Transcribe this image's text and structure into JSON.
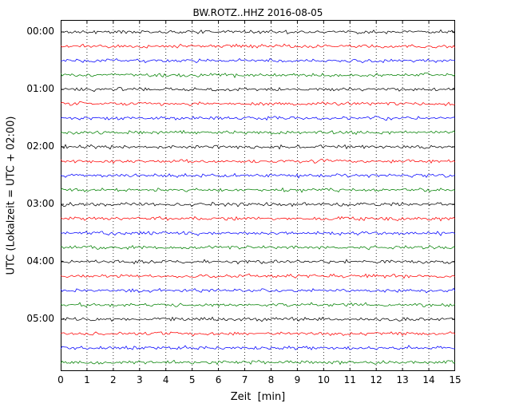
{
  "chart_data": {
    "type": "line",
    "subtype": "helicorder-dayplot",
    "title": "BW.ROTZ..HHZ 2016-08-05",
    "xlabel": "Zeit  [min]",
    "ylabel": "UTC (Lokalzeit = UTC + 02:00)",
    "xlim": [
      0,
      15
    ],
    "x_ticks": [
      "0",
      "1",
      "2",
      "3",
      "4",
      "5",
      "6",
      "7",
      "8",
      "9",
      "10",
      "11",
      "12",
      "13",
      "14",
      "15"
    ],
    "y_tick_labels": [
      "00:00",
      "01:00",
      "02:00",
      "03:00",
      "04:00",
      "05:00"
    ],
    "time_range": [
      "00:00",
      "06:00"
    ],
    "minutes_per_line": 15,
    "grid": true,
    "grid_style": "dotted-vertical",
    "trace_color_cycle": [
      "#000000",
      "#ff0000",
      "#0000ff",
      "#008000"
    ],
    "trace_description": "flat low-amplitude seismic background noise on every line",
    "traces": [
      {
        "start": "00:00",
        "color": "#000000"
      },
      {
        "start": "00:15",
        "color": "#ff0000"
      },
      {
        "start": "00:30",
        "color": "#0000ff"
      },
      {
        "start": "00:45",
        "color": "#008000"
      },
      {
        "start": "01:00",
        "color": "#000000"
      },
      {
        "start": "01:15",
        "color": "#ff0000"
      },
      {
        "start": "01:30",
        "color": "#0000ff"
      },
      {
        "start": "01:45",
        "color": "#008000"
      },
      {
        "start": "02:00",
        "color": "#000000"
      },
      {
        "start": "02:15",
        "color": "#ff0000"
      },
      {
        "start": "02:30",
        "color": "#0000ff"
      },
      {
        "start": "02:45",
        "color": "#008000"
      },
      {
        "start": "03:00",
        "color": "#000000"
      },
      {
        "start": "03:15",
        "color": "#ff0000"
      },
      {
        "start": "03:30",
        "color": "#0000ff"
      },
      {
        "start": "03:45",
        "color": "#008000"
      },
      {
        "start": "04:00",
        "color": "#000000"
      },
      {
        "start": "04:15",
        "color": "#ff0000"
      },
      {
        "start": "04:30",
        "color": "#0000ff"
      },
      {
        "start": "04:45",
        "color": "#008000"
      },
      {
        "start": "05:00",
        "color": "#000000"
      },
      {
        "start": "05:15",
        "color": "#ff0000"
      },
      {
        "start": "05:30",
        "color": "#0000ff"
      },
      {
        "start": "05:45",
        "color": "#008000"
      }
    ]
  }
}
